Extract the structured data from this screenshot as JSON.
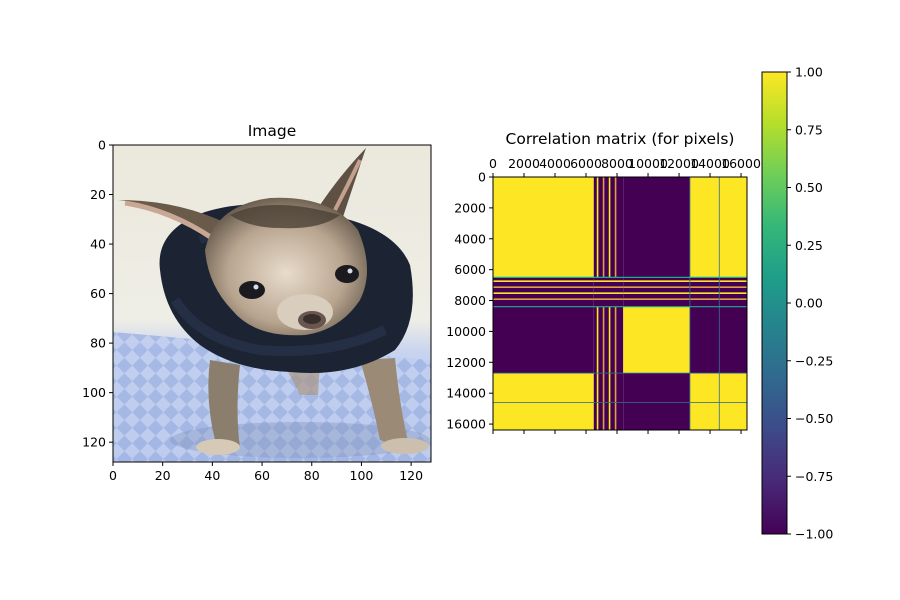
{
  "chart_data": [
    {
      "type": "image",
      "title": "Image",
      "subject": "small chihuahua wearing a dark navy hooded sweater, standing on a blue-and-white checkered blanket",
      "xlim": [
        0,
        128
      ],
      "ylim": [
        128,
        0
      ],
      "xticks": [
        0,
        20,
        40,
        60,
        80,
        100,
        120
      ],
      "yticks": [
        0,
        20,
        40,
        60,
        80,
        100,
        120
      ],
      "y_inverted": true
    },
    {
      "type": "heatmap",
      "title": "Correlation matrix (for pixels)",
      "xlim": [
        0,
        16384
      ],
      "ylim": [
        16384,
        0
      ],
      "xticks": [
        0,
        2000,
        4000,
        6000,
        8000,
        10000,
        12000,
        14000,
        16000
      ],
      "yticks": [
        0,
        2000,
        4000,
        6000,
        8000,
        10000,
        12000,
        14000,
        16000
      ],
      "xaxis_position": "top",
      "blocks": [
        0,
        6500,
        8400,
        12700,
        14600,
        16384
      ],
      "block_signs": [
        1,
        0,
        -1,
        1,
        1
      ],
      "colormap": "viridis",
      "colorbar": {
        "vmin": -1.0,
        "vmax": 1.0,
        "ticks": [
          "1.00",
          "0.75",
          "0.50",
          "0.25",
          "0.00",
          "−0.25",
          "−0.50",
          "−0.75",
          "−1.00"
        ],
        "colors": [
          "#440154",
          "#482878",
          "#3e4989",
          "#31688e",
          "#26828e",
          "#1f9e89",
          "#35b779",
          "#6ece58",
          "#b5de2b",
          "#fde725"
        ]
      }
    }
  ],
  "colors": {
    "sweater": "#1c2434",
    "blanket": "#b8c8ec",
    "background": "#ece8da"
  }
}
